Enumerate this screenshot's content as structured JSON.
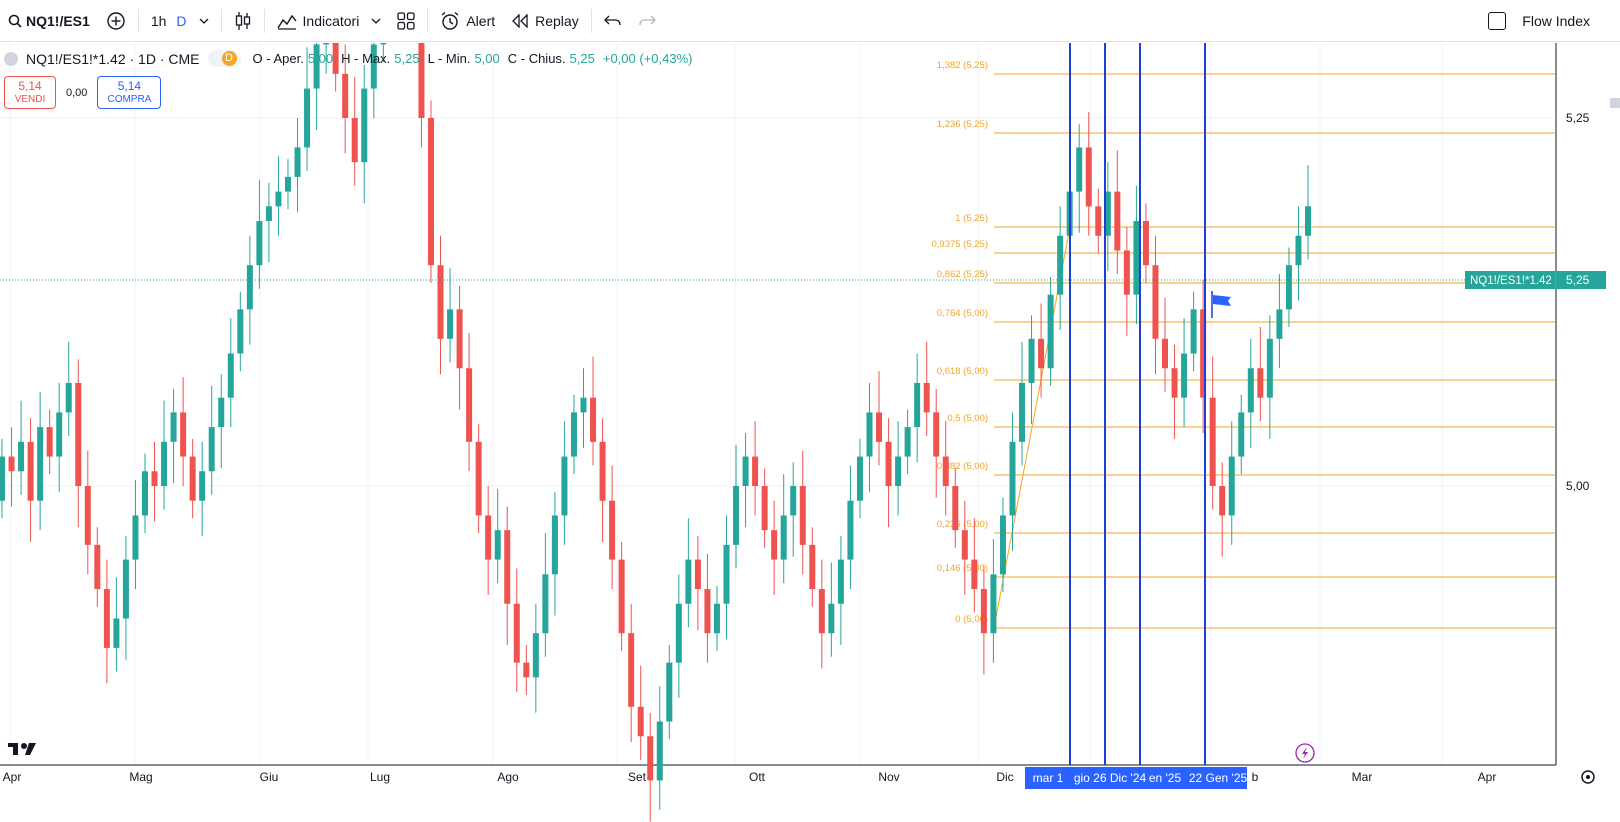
{
  "toolbar": {
    "symbol": "NQ1!/ES1",
    "interval": "1h",
    "interval_flag": "D",
    "indicators_label": "Indicatori",
    "alert_label": "Alert",
    "replay_label": "Replay",
    "flow_index_label": "Flow Index"
  },
  "legend": {
    "title": "NQ1!/ES1!*1.42 · 1D · CME",
    "badge": "D",
    "o_label": "O - Aper.",
    "o_val": "5,00",
    "h_label": "H - Max.",
    "h_val": "5,25",
    "l_label": "L - Min.",
    "l_val": "5,00",
    "c_label": "C - Chius.",
    "c_val": "5,25",
    "change": "+0,00 (+0,43%)"
  },
  "trade": {
    "sell_price": "5,14",
    "sell_label": "VENDI",
    "spread": "0,00",
    "buy_price": "5,14",
    "buy_label": "COMPRA"
  },
  "colors": {
    "up": "#26a69a",
    "down": "#ef5350",
    "fib": "#f5a623",
    "vline": "#1e3fd4",
    "accent": "#2962ff"
  },
  "chart_data": {
    "type": "candlestick",
    "y_ticks": [
      "5,25",
      "5,00"
    ],
    "y_ticks_values": [
      5.25,
      5.0
    ],
    "last_price_label": "NQ1!/ES1!*1.42",
    "last_price": "5,25",
    "x_ticks": [
      "Apr",
      "Mag",
      "Giu",
      "Lug",
      "Ago",
      "Set",
      "Ott",
      "Nov",
      "Dic",
      "Mar",
      "Apr"
    ],
    "x_highlights": [
      "mar 1",
      "gio 26 Dic '24",
      "en '25",
      "22 Gen '25"
    ],
    "x_hidden_partial": "b",
    "fib_levels": [
      {
        "label": "1,382 (5,25)"
      },
      {
        "label": "1,236 (5,25)"
      },
      {
        "label": "1 (5,25)"
      },
      {
        "label": "0,9375 (5,25)"
      },
      {
        "label": "0,862 (5,25)"
      },
      {
        "label": "0,764 (5,00)"
      },
      {
        "label": "0,618 (5,00)"
      },
      {
        "label": "0,5 (5,00)"
      },
      {
        "label": "0,382 (5,00)"
      },
      {
        "label": "0,236 (5,00)"
      },
      {
        "label": "0,146 (5,00)"
      },
      {
        "label": "0 (5,00)"
      }
    ],
    "closes": [
      5.02,
      5.01,
      5.03,
      4.99,
      5.04,
      5.02,
      5.05,
      5.07,
      5.0,
      4.96,
      4.93,
      4.89,
      4.91,
      4.95,
      4.98,
      5.01,
      5.0,
      5.03,
      5.05,
      5.02,
      4.99,
      5.01,
      5.04,
      5.06,
      5.09,
      5.12,
      5.15,
      5.18,
      5.19,
      5.2,
      5.21,
      5.23,
      5.27,
      5.3,
      5.31,
      5.28,
      5.25,
      5.22,
      5.27,
      5.3,
      5.34,
      5.37,
      5.4,
      5.35,
      5.25,
      5.15,
      5.1,
      5.12,
      5.08,
      5.03,
      4.98,
      4.95,
      4.97,
      4.92,
      4.88,
      4.87,
      4.9,
      4.94,
      4.98,
      5.02,
      5.05,
      5.06,
      5.03,
      4.99,
      4.95,
      4.9,
      4.85,
      4.83,
      4.8,
      4.84,
      4.88,
      4.92,
      4.95,
      4.93,
      4.9,
      4.92,
      4.96,
      5.0,
      5.02,
      5.0,
      4.97,
      4.95,
      4.98,
      5.0,
      4.96,
      4.93,
      4.9,
      4.92,
      4.95,
      4.99,
      5.02,
      5.05,
      5.03,
      5.0,
      5.02,
      5.04,
      5.07,
      5.05,
      5.02,
      5.0,
      4.97,
      4.95,
      4.93,
      4.9,
      4.94,
      4.98,
      5.03,
      5.07,
      5.1,
      5.08,
      5.13,
      5.17,
      5.2,
      5.23,
      5.19,
      5.17,
      5.2,
      5.16,
      5.13,
      5.18,
      5.15,
      5.1,
      5.08,
      5.06,
      5.09,
      5.12,
      5.06,
      5.0,
      4.98,
      5.02,
      5.05,
      5.08,
      5.06,
      5.1,
      5.12,
      5.15,
      5.17,
      5.19
    ]
  }
}
